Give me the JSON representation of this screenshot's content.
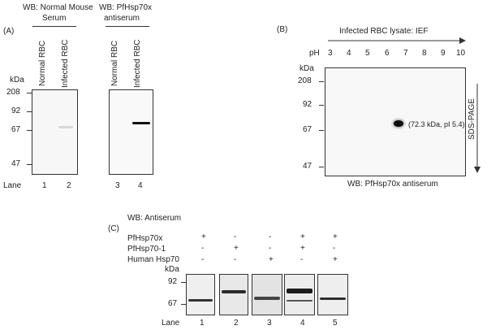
{
  "panel_a": {
    "label": "(A)",
    "header_left": "WB: Normal Mouse",
    "header_left_2": "Serum",
    "header_right": "WB: PfHsp70x",
    "header_right_2": "antiserum",
    "kda_label": "kDa",
    "markers": [
      "208",
      "92",
      "67",
      "47"
    ],
    "lane_word": "Lane",
    "lanes": [
      "1",
      "2",
      "3",
      "4"
    ],
    "col_labels": [
      "Normal RBC",
      "Infected RBC",
      "Normal RBC",
      "Infected RBC"
    ]
  },
  "panel_b": {
    "label": "(B)",
    "ief_label": "Infected RBC lysate: IEF",
    "ph_label": "pH",
    "ph_values": [
      "3",
      "4",
      "5",
      "6",
      "7",
      "8",
      "9",
      "10"
    ],
    "kda_label": "kDa",
    "markers": [
      "208",
      "92",
      "67",
      "47"
    ],
    "spot_label": "(72.3 kDa, pI 5.4)",
    "sds_label": "SDS-PAGE",
    "footer": "WB: PfHsp70x antiserum"
  },
  "panel_c": {
    "label": "(C)",
    "title": "WB: Antiserum",
    "rows": [
      {
        "name": "PfHsp70x",
        "signs": [
          "+",
          "-",
          "-",
          "+",
          "+"
        ]
      },
      {
        "name": "PfHsp70-1",
        "signs": [
          "-",
          "+",
          "-",
          "+",
          "-"
        ]
      },
      {
        "name": "Human Hsp70",
        "signs": [
          "-",
          "-",
          "+",
          "-",
          "+"
        ]
      }
    ],
    "kda_label": "kDa",
    "markers": [
      "92",
      "67"
    ],
    "lane_word": "Lane",
    "lanes": [
      "1",
      "2",
      "3",
      "4",
      "5"
    ]
  }
}
